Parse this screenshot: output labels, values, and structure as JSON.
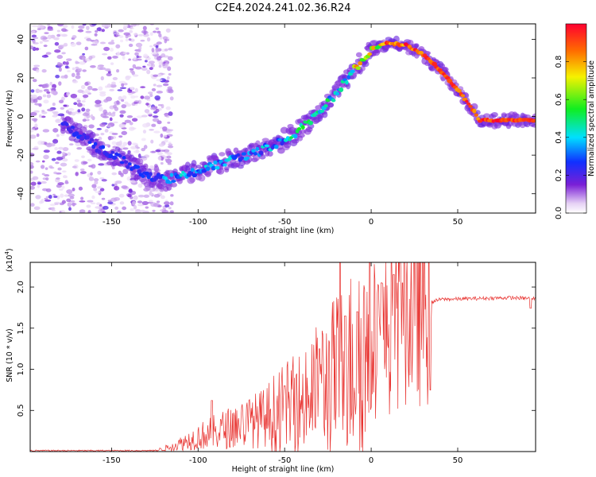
{
  "chart_data": [
    {
      "type": "heatmap",
      "title": "C2E4.2024.241.02.36.R24",
      "xlabel": "Height of straight line (km)",
      "ylabel": "Frequency (Hz)",
      "xlim": [
        -197,
        95
      ],
      "ylim": [
        -50,
        48
      ],
      "x_ticks": [
        "-150",
        "-100",
        "-50",
        "0",
        "50"
      ],
      "y_ticks": [
        "-40",
        "-20",
        "0",
        "20",
        "40"
      ],
      "colorbar": {
        "label": "Normalized spectral amplitude",
        "range": [
          0,
          1
        ],
        "ticks": [
          "0.0",
          "0.2",
          "0.4",
          "0.6",
          "0.8"
        ],
        "colormap": "rainbow (white-purple-blue-cyan-green-yellow-red)"
      },
      "trace": {
        "x": [
          -175,
          -160,
          -145,
          -130,
          -120,
          -110,
          -100,
          -90,
          -80,
          -70,
          -60,
          -50,
          -40,
          -30,
          -20,
          -10,
          0,
          10,
          20,
          30,
          40,
          50,
          60,
          62,
          95
        ],
        "y": [
          -5,
          -15,
          -22,
          -30,
          -33,
          -31,
          -28,
          -25,
          -22,
          -20,
          -16,
          -12,
          -6,
          2,
          12,
          24,
          35,
          38,
          37,
          32,
          24,
          14,
          2,
          -2,
          -2
        ]
      }
    },
    {
      "type": "line",
      "title": "",
      "xlabel": "Height of straight line (km)",
      "ylabel": "SNR (10 * v/v)",
      "y_multiplier": "(x10",
      "y_multiplier_exp": "4",
      "xlim": [
        -197,
        95
      ],
      "ylim": [
        0,
        23000
      ],
      "x_ticks": [
        "-150",
        "-100",
        "-50",
        "0",
        "50"
      ],
      "y_ticks": [
        "0.5",
        "1.0",
        "1.5",
        "2.0"
      ],
      "color": "#e8322f",
      "envelope": {
        "x": [
          -197,
          -160,
          -125,
          -115,
          -100,
          -80,
          -60,
          -40,
          -25,
          -10,
          0,
          10,
          20,
          30,
          35,
          40,
          60,
          80,
          95
        ],
        "y": [
          0,
          0,
          100,
          600,
          1800,
          3000,
          4200,
          6000,
          8500,
          11000,
          12500,
          14500,
          16500,
          17800,
          18200,
          18500,
          18600,
          18700,
          18600
        ]
      },
      "spikes": [
        {
          "x": -92,
          "y": 6200
        },
        {
          "x": -50,
          "y": 8000
        },
        {
          "x": -30,
          "y": 12500
        },
        {
          "x": -18,
          "y": 23000
        },
        {
          "x": -15,
          "y": 16500
        },
        {
          "x": -8,
          "y": 17000
        },
        {
          "x": 6,
          "y": 20500
        },
        {
          "x": 13,
          "y": 21500
        },
        {
          "x": 18,
          "y": 20500
        }
      ]
    }
  ]
}
